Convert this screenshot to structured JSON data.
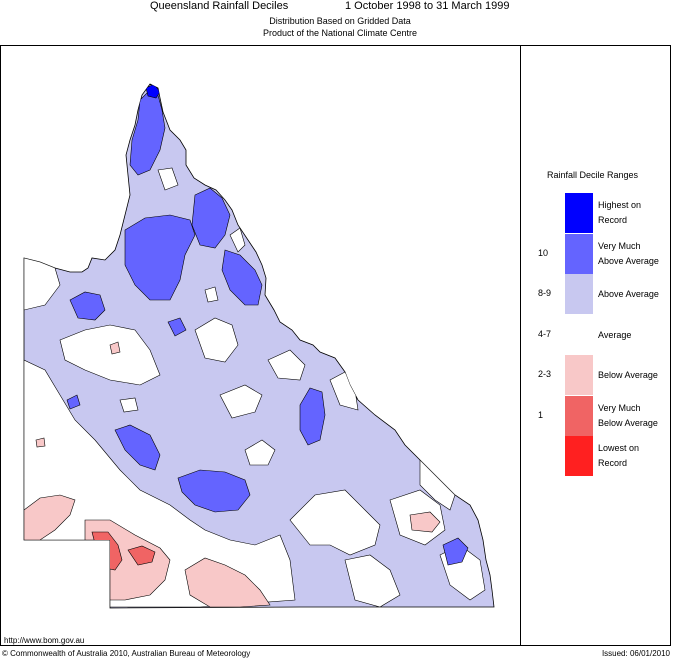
{
  "header": {
    "title": "Queensland Rainfall Deciles",
    "period": "1 October 1998 to 31 March 1999",
    "subtitle1": "Distribution Based on Gridded Data",
    "subtitle2": "Product of the National Climate Centre"
  },
  "legend": {
    "title": "Rainfall Decile Ranges",
    "entries": [
      {
        "range": "",
        "label1": "Highest on",
        "label2": "Record",
        "color": "#0000ff"
      },
      {
        "range": "10",
        "label1": "Very Much",
        "label2": "Above Average",
        "color": "#6464ff"
      },
      {
        "range": "8-9",
        "label1": "Above Average",
        "label2": "",
        "color": "#c8c8f0"
      },
      {
        "range": "4-7",
        "label1": "Average",
        "label2": "",
        "color": "#ffffff"
      },
      {
        "range": "2-3",
        "label1": "Below Average",
        "label2": "",
        "color": "#f8c8c8"
      },
      {
        "range": "1",
        "label1": "Very Much",
        "label2": "Below Average",
        "color": "#f06464"
      },
      {
        "range": "",
        "label1": "Lowest on",
        "label2": "Record",
        "color": "#ff2020"
      }
    ]
  },
  "footer": {
    "url": "http://www.bom.gov.au",
    "copyright": "© Commonwealth of Australia 2010, Australian Bureau of Meteorology",
    "issued": "Issued: 06/01/2010"
  },
  "colors": {
    "above_average": "#c8c8f0",
    "very_much_above": "#6464ff",
    "highest": "#0000ff",
    "below_average": "#f8c8c8",
    "very_much_below": "#f06464",
    "lowest": "#ff2020"
  }
}
